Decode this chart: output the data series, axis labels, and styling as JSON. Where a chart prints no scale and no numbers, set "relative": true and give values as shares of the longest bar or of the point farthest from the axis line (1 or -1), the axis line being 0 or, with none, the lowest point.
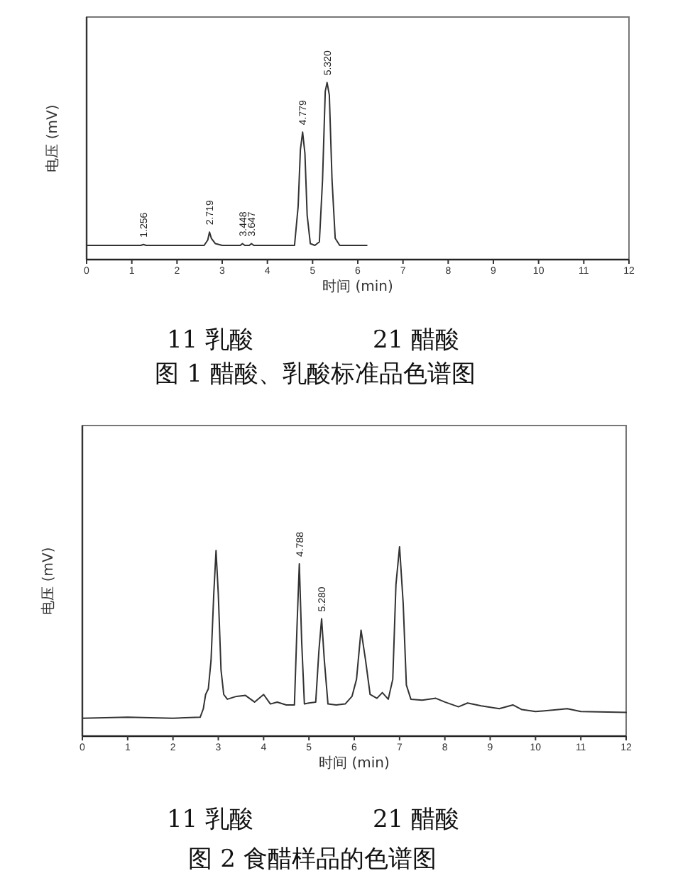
{
  "chart_data": [
    {
      "type": "line",
      "title": "图 1  醋酸、乳酸标准品色谱图",
      "xlabel": "时间 (min)",
      "ylabel": "电压 (mV)",
      "relative": true,
      "xlim": [
        0,
        12
      ],
      "xticks": [
        0,
        1,
        2,
        3,
        4,
        5,
        6,
        7,
        8,
        9,
        10,
        11,
        12
      ],
      "color": "#333333",
      "x": [
        0,
        1.0,
        1.2,
        1.256,
        1.32,
        2.0,
        2.6,
        2.68,
        2.719,
        2.76,
        2.85,
        3.0,
        3.4,
        3.448,
        3.5,
        3.6,
        3.647,
        3.7,
        4.0,
        4.6,
        4.68,
        4.73,
        4.779,
        4.83,
        4.88,
        4.95,
        5.05,
        5.15,
        5.22,
        5.28,
        5.32,
        5.37,
        5.43,
        5.5,
        5.6,
        6.2
      ],
      "values": [
        0.08,
        0.08,
        0.08,
        0.085,
        0.08,
        0.08,
        0.08,
        0.11,
        0.155,
        0.12,
        0.09,
        0.08,
        0.08,
        0.09,
        0.08,
        0.08,
        0.09,
        0.08,
        0.08,
        0.08,
        0.3,
        0.62,
        0.72,
        0.6,
        0.25,
        0.09,
        0.08,
        0.1,
        0.45,
        0.95,
        1,
        0.93,
        0.45,
        0.12,
        0.08,
        0.08
      ],
      "annotations": [
        "11 乳酸",
        "21 醋酸",
        {
          "text": "1.256",
          "x": 1.256,
          "y": 0.085
        },
        {
          "text": "2.719",
          "x": 2.719,
          "y": 0.155
        },
        {
          "text": "3.448",
          "x": 3.448,
          "y": 0.09
        },
        {
          "text": "3.647",
          "x": 3.647,
          "y": 0.09
        },
        {
          "text": "4.779",
          "x": 4.779,
          "y": 0.72
        },
        {
          "text": "5.320",
          "x": 5.32,
          "y": 1
        }
      ]
    },
    {
      "type": "line",
      "title": "图 2  食醋样品的色谱图",
      "xlabel": "时间 (min)",
      "ylabel": "电压 (mV)",
      "relative": true,
      "xlim": [
        0,
        12
      ],
      "xticks": [
        0,
        1,
        2,
        3,
        4,
        5,
        6,
        7,
        8,
        9,
        10,
        11,
        12
      ],
      "color": "#333333",
      "x": [
        0,
        1,
        2,
        2.6,
        2.67,
        2.72,
        2.78,
        2.84,
        2.9,
        2.95,
        3.0,
        3.06,
        3.12,
        3.2,
        3.4,
        3.6,
        3.8,
        4.0,
        4.15,
        4.3,
        4.5,
        4.68,
        4.74,
        4.788,
        4.84,
        4.9,
        5.0,
        5.15,
        5.22,
        5.28,
        5.34,
        5.42,
        5.6,
        5.8,
        5.95,
        6.05,
        6.15,
        6.25,
        6.35,
        6.5,
        6.62,
        6.75,
        6.85,
        6.92,
        7.0,
        7.08,
        7.15,
        7.25,
        7.5,
        7.8,
        8.0,
        8.3,
        8.5,
        8.8,
        9.2,
        9.5,
        9.7,
        10,
        10.5,
        10.7,
        11,
        12
      ],
      "values": [
        0.095,
        0.1,
        0.095,
        0.1,
        0.145,
        0.22,
        0.25,
        0.4,
        0.75,
        0.98,
        0.75,
        0.35,
        0.22,
        0.195,
        0.21,
        0.215,
        0.18,
        0.22,
        0.17,
        0.18,
        0.165,
        0.165,
        0.6,
        0.91,
        0.5,
        0.17,
        0.175,
        0.18,
        0.45,
        0.62,
        0.4,
        0.17,
        0.165,
        0.17,
        0.21,
        0.3,
        0.56,
        0.4,
        0.22,
        0.2,
        0.23,
        0.195,
        0.3,
        0.8,
        1,
        0.7,
        0.27,
        0.195,
        0.19,
        0.2,
        0.18,
        0.155,
        0.175,
        0.16,
        0.145,
        0.165,
        0.14,
        0.13,
        0.14,
        0.145,
        0.13,
        0.125
      ],
      "annotations": [
        "11 乳酸",
        "21 醋酸",
        {
          "text": "4.788",
          "x": 4.788,
          "y": 0.91
        },
        {
          "text": "5.280",
          "x": 5.28,
          "y": 0.62
        }
      ]
    }
  ]
}
